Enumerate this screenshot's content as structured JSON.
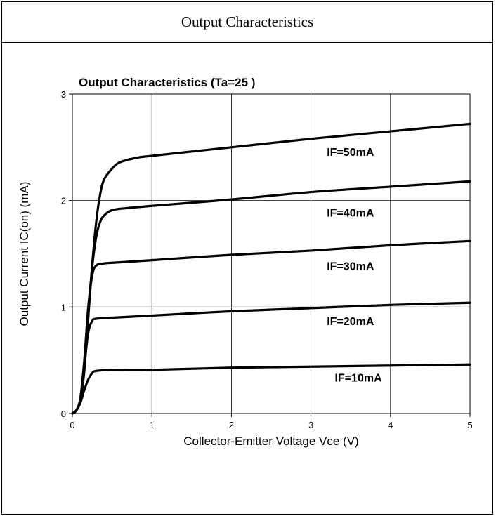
{
  "header": {
    "title": "Output Characteristics"
  },
  "chart_data": {
    "type": "line",
    "title": "Output Characteristics (Ta=25    )",
    "xlabel": "Collector-Emitter Voltage Vce (V)",
    "ylabel": "Output Current IC(on) (mA)",
    "xlim": [
      0,
      5
    ],
    "ylim": [
      0,
      3
    ],
    "x_ticks": [
      "0",
      "1",
      "2",
      "3",
      "4",
      "5"
    ],
    "y_ticks": [
      "0",
      "1",
      "2",
      "3"
    ],
    "grid": true,
    "line_color": "#000000",
    "series": [
      {
        "name": "IF=50mA",
        "points": [
          [
            0,
            0
          ],
          [
            0.05,
            0.03
          ],
          [
            0.1,
            0.12
          ],
          [
            0.15,
            0.4
          ],
          [
            0.2,
            0.9
          ],
          [
            0.25,
            1.4
          ],
          [
            0.3,
            1.8
          ],
          [
            0.35,
            2.06
          ],
          [
            0.4,
            2.2
          ],
          [
            0.5,
            2.3
          ],
          [
            0.6,
            2.36
          ],
          [
            0.8,
            2.4
          ],
          [
            1,
            2.42
          ],
          [
            2,
            2.5
          ],
          [
            3,
            2.58
          ],
          [
            4,
            2.65
          ],
          [
            5,
            2.72
          ]
        ]
      },
      {
        "name": "IF=40mA",
        "points": [
          [
            0,
            0
          ],
          [
            0.05,
            0.03
          ],
          [
            0.1,
            0.12
          ],
          [
            0.15,
            0.42
          ],
          [
            0.2,
            0.95
          ],
          [
            0.25,
            1.38
          ],
          [
            0.3,
            1.66
          ],
          [
            0.35,
            1.8
          ],
          [
            0.4,
            1.86
          ],
          [
            0.5,
            1.91
          ],
          [
            0.7,
            1.93
          ],
          [
            1,
            1.95
          ],
          [
            2,
            2.01
          ],
          [
            3,
            2.08
          ],
          [
            4,
            2.13
          ],
          [
            5,
            2.18
          ]
        ]
      },
      {
        "name": "IF=30mA",
        "points": [
          [
            0,
            0
          ],
          [
            0.05,
            0.03
          ],
          [
            0.1,
            0.14
          ],
          [
            0.15,
            0.5
          ],
          [
            0.2,
            1.0
          ],
          [
            0.25,
            1.3
          ],
          [
            0.3,
            1.39
          ],
          [
            0.4,
            1.41
          ],
          [
            0.6,
            1.42
          ],
          [
            1,
            1.44
          ],
          [
            2,
            1.49
          ],
          [
            3,
            1.53
          ],
          [
            4,
            1.58
          ],
          [
            5,
            1.62
          ]
        ]
      },
      {
        "name": "IF=20mA",
        "points": [
          [
            0,
            0
          ],
          [
            0.05,
            0.03
          ],
          [
            0.1,
            0.14
          ],
          [
            0.15,
            0.45
          ],
          [
            0.2,
            0.76
          ],
          [
            0.25,
            0.87
          ],
          [
            0.3,
            0.89
          ],
          [
            0.5,
            0.9
          ],
          [
            1,
            0.92
          ],
          [
            2,
            0.96
          ],
          [
            3,
            0.99
          ],
          [
            4,
            1.02
          ],
          [
            5,
            1.04
          ]
        ]
      },
      {
        "name": "IF=10mA",
        "points": [
          [
            0,
            0
          ],
          [
            0.05,
            0.03
          ],
          [
            0.1,
            0.1
          ],
          [
            0.15,
            0.22
          ],
          [
            0.2,
            0.32
          ],
          [
            0.25,
            0.38
          ],
          [
            0.3,
            0.4
          ],
          [
            0.5,
            0.41
          ],
          [
            1,
            0.41
          ],
          [
            2,
            0.43
          ],
          [
            3,
            0.44
          ],
          [
            4,
            0.45
          ],
          [
            5,
            0.46
          ]
        ]
      }
    ],
    "curve_labels": [
      {
        "text": "IF=50mA",
        "x": 3.2,
        "y": 2.42
      },
      {
        "text": "IF=40mA",
        "x": 3.2,
        "y": 1.85
      },
      {
        "text": "IF=30mA",
        "x": 3.2,
        "y": 1.35
      },
      {
        "text": "IF=20mA",
        "x": 3.2,
        "y": 0.83
      },
      {
        "text": "IF=10mA",
        "x": 3.3,
        "y": 0.3
      }
    ]
  }
}
